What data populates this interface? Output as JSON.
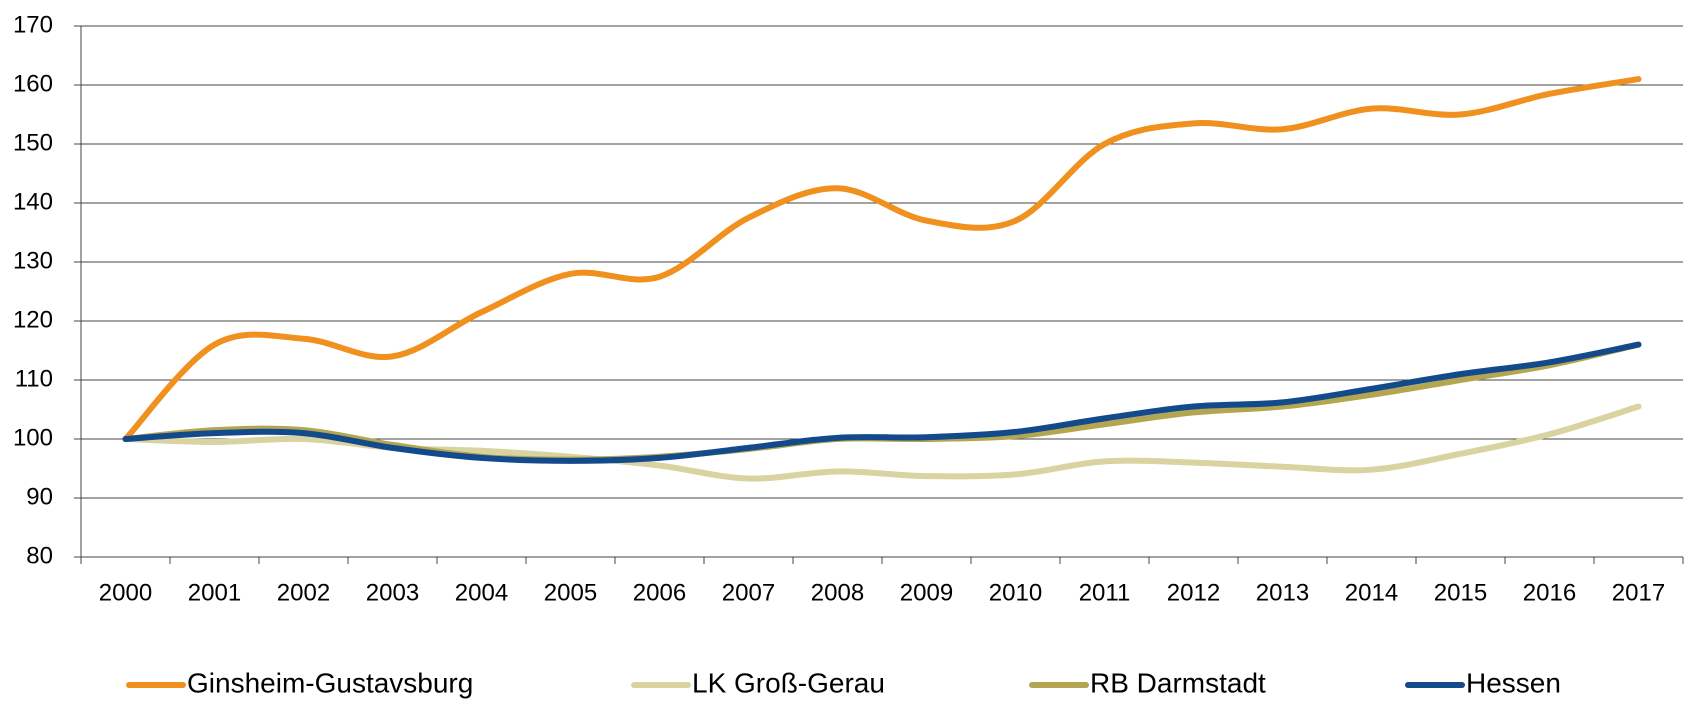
{
  "chart_data": {
    "type": "line",
    "categories": [
      "2000",
      "2001",
      "2002",
      "2003",
      "2004",
      "2005",
      "2006",
      "2007",
      "2008",
      "2009",
      "2010",
      "2011",
      "2012",
      "2013",
      "2014",
      "2015",
      "2016",
      "2017"
    ],
    "series": [
      {
        "name": "Ginsheim-Gustavsburg",
        "color": "#f0901e",
        "values": [
          100,
          116,
          117,
          114,
          121.5,
          128,
          127.5,
          137.5,
          142.5,
          137,
          137,
          150,
          153.5,
          152.5,
          156,
          155,
          158.5,
          161
        ]
      },
      {
        "name": "LK Groß-Gerau",
        "color": "#d8d3a0",
        "values": [
          100,
          99.5,
          100,
          98.5,
          98,
          97,
          95.5,
          93.3,
          94.5,
          93.7,
          94,
          96.2,
          96,
          95.3,
          94.8,
          97.5,
          100.8,
          105.5
        ]
      },
      {
        "name": "RB Darmstadt",
        "color": "#b4a650",
        "values": [
          100,
          101.5,
          101.5,
          99,
          97,
          96.5,
          97,
          98.3,
          100,
          100,
          100.5,
          102.5,
          104.5,
          105.5,
          107.5,
          110,
          112.5,
          116
        ]
      },
      {
        "name": "Hessen",
        "color": "#124a8c",
        "values": [
          100,
          101,
          101,
          98.5,
          96.8,
          96.3,
          96.8,
          98.5,
          100.2,
          100.3,
          101.2,
          103.5,
          105.5,
          106.2,
          108.5,
          111,
          113,
          116
        ]
      }
    ],
    "ylim": [
      80,
      170
    ],
    "yticks": [
      80,
      90,
      100,
      110,
      120,
      130,
      140,
      150,
      160,
      170
    ],
    "grid": true,
    "legend": "bottom"
  }
}
